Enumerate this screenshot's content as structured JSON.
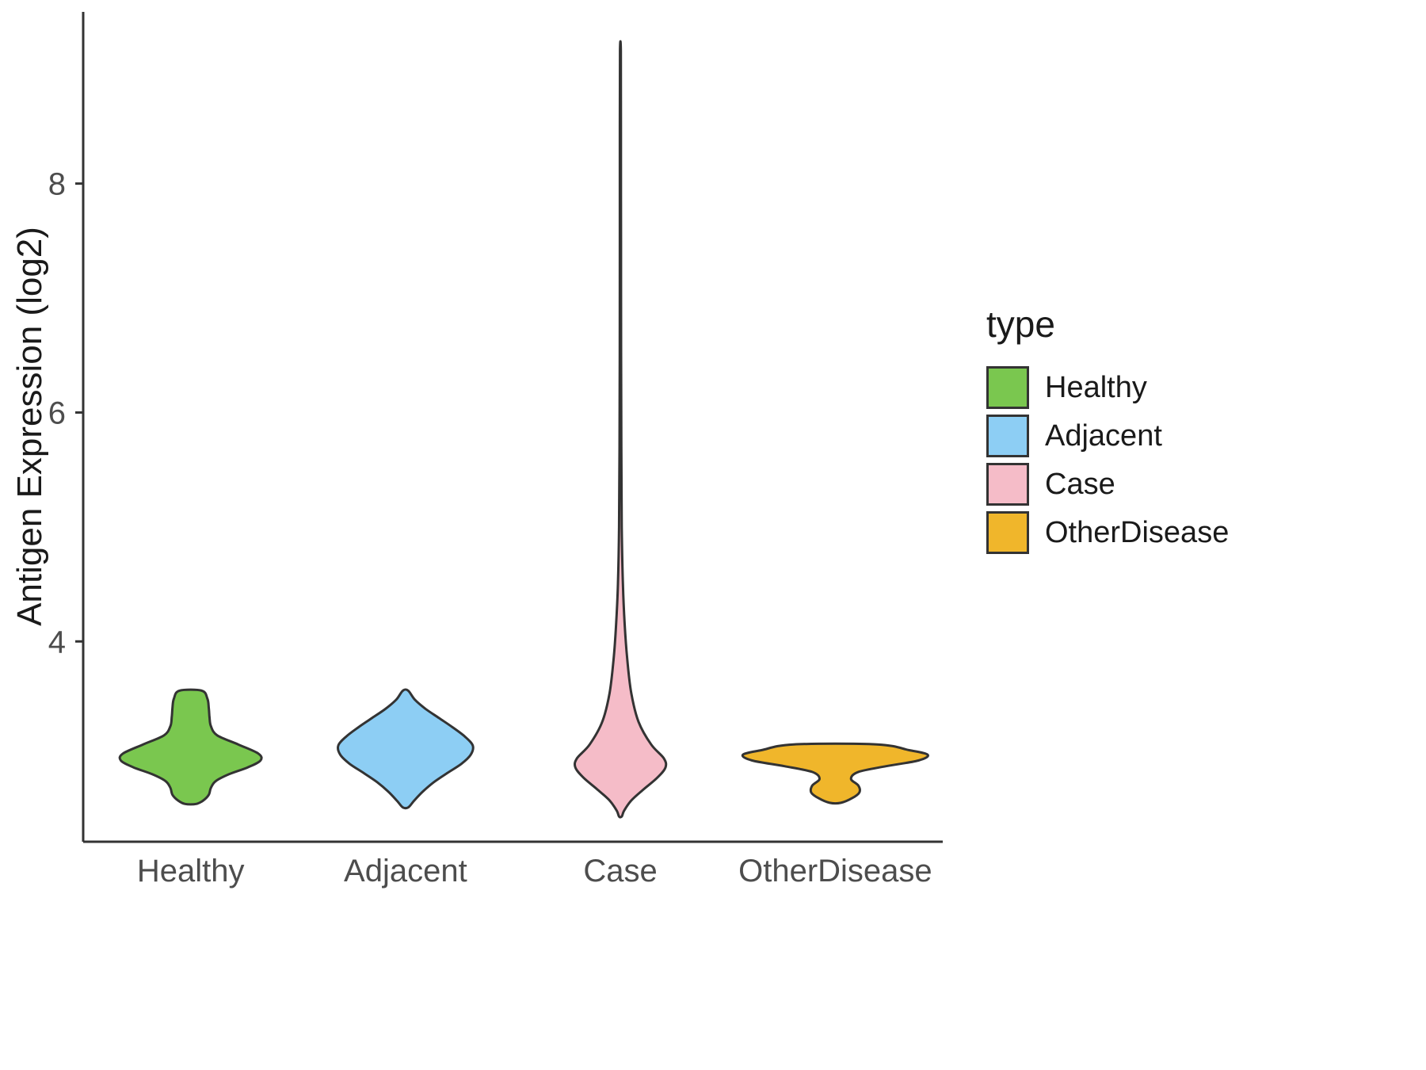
{
  "chart_data": {
    "type": "violin",
    "title": "",
    "xlabel": "",
    "ylabel": "Antigen Expression (log2)",
    "categories": [
      "Healthy",
      "Adjacent",
      "Case",
      "OtherDisease"
    ],
    "y_ticks": [
      4,
      6,
      8
    ],
    "ylim": [
      2.25,
      9.5
    ],
    "grid": false,
    "background_color": "#FFFFFF",
    "axis_color": "#333333",
    "outline_color": "#333333",
    "tick_label_color": "#4D4D4D",
    "legend": {
      "title": "type",
      "position": "right",
      "entries": [
        {
          "label": "Healthy",
          "color": "#7AC74F"
        },
        {
          "label": "Adjacent",
          "color": "#8DCEF4"
        },
        {
          "label": "Case",
          "color": "#F5BCC8"
        },
        {
          "label": "OtherDisease",
          "color": "#F0B62B"
        }
      ]
    },
    "series": [
      {
        "name": "Healthy",
        "color": "#7AC74F",
        "max_halfwidth_frac": 0.325,
        "summary": {
          "min": 2.58,
          "max": 3.57,
          "peak_density_at": 2.96
        },
        "profile": [
          [
            3.57,
            0.16
          ],
          [
            3.5,
            0.24
          ],
          [
            3.42,
            0.26
          ],
          [
            3.34,
            0.27
          ],
          [
            3.26,
            0.29
          ],
          [
            3.18,
            0.38
          ],
          [
            3.1,
            0.68
          ],
          [
            3.02,
            0.97
          ],
          [
            2.96,
            1.0
          ],
          [
            2.9,
            0.82
          ],
          [
            2.84,
            0.55
          ],
          [
            2.78,
            0.36
          ],
          [
            2.72,
            0.29
          ],
          [
            2.66,
            0.26
          ],
          [
            2.61,
            0.18
          ],
          [
            2.58,
            0.08
          ]
        ]
      },
      {
        "name": "Adjacent",
        "color": "#8DCEF4",
        "max_halfwidth_frac": 0.313,
        "summary": {
          "min": 2.55,
          "max": 3.57,
          "peak_density_at": 3.09
        },
        "profile": [
          [
            3.57,
            0.04
          ],
          [
            3.49,
            0.14
          ],
          [
            3.41,
            0.3
          ],
          [
            3.33,
            0.5
          ],
          [
            3.25,
            0.7
          ],
          [
            3.17,
            0.88
          ],
          [
            3.09,
            1.0
          ],
          [
            3.01,
            0.97
          ],
          [
            2.93,
            0.83
          ],
          [
            2.85,
            0.62
          ],
          [
            2.77,
            0.42
          ],
          [
            2.69,
            0.26
          ],
          [
            2.61,
            0.13
          ],
          [
            2.55,
            0.04
          ]
        ]
      },
      {
        "name": "Case",
        "color": "#F5BCC8",
        "max_halfwidth_frac": 0.21,
        "summary": {
          "min": 2.47,
          "max": 9.16,
          "peak_density_at": 2.9
        },
        "profile": [
          [
            9.16,
            0.01
          ],
          [
            8.5,
            0.012
          ],
          [
            7.5,
            0.013
          ],
          [
            6.5,
            0.015
          ],
          [
            5.7,
            0.02
          ],
          [
            5.0,
            0.03
          ],
          [
            4.5,
            0.055
          ],
          [
            4.15,
            0.095
          ],
          [
            3.85,
            0.15
          ],
          [
            3.55,
            0.24
          ],
          [
            3.3,
            0.4
          ],
          [
            3.1,
            0.68
          ],
          [
            2.98,
            0.96
          ],
          [
            2.9,
            1.0
          ],
          [
            2.81,
            0.82
          ],
          [
            2.71,
            0.52
          ],
          [
            2.61,
            0.24
          ],
          [
            2.52,
            0.08
          ],
          [
            2.47,
            0.03
          ]
        ]
      },
      {
        "name": "OtherDisease",
        "color": "#F0B62B",
        "max_halfwidth_frac": 0.43,
        "summary": {
          "min": 2.59,
          "max": 3.1,
          "peak_density_at": 3.01
        },
        "profile": [
          [
            3.1,
            0.45
          ],
          [
            3.05,
            0.8
          ],
          [
            3.01,
            1.0
          ],
          [
            2.96,
            0.9
          ],
          [
            2.91,
            0.55
          ],
          [
            2.86,
            0.25
          ],
          [
            2.8,
            0.17
          ],
          [
            2.74,
            0.25
          ],
          [
            2.68,
            0.26
          ],
          [
            2.63,
            0.18
          ],
          [
            2.59,
            0.06
          ]
        ]
      }
    ]
  }
}
